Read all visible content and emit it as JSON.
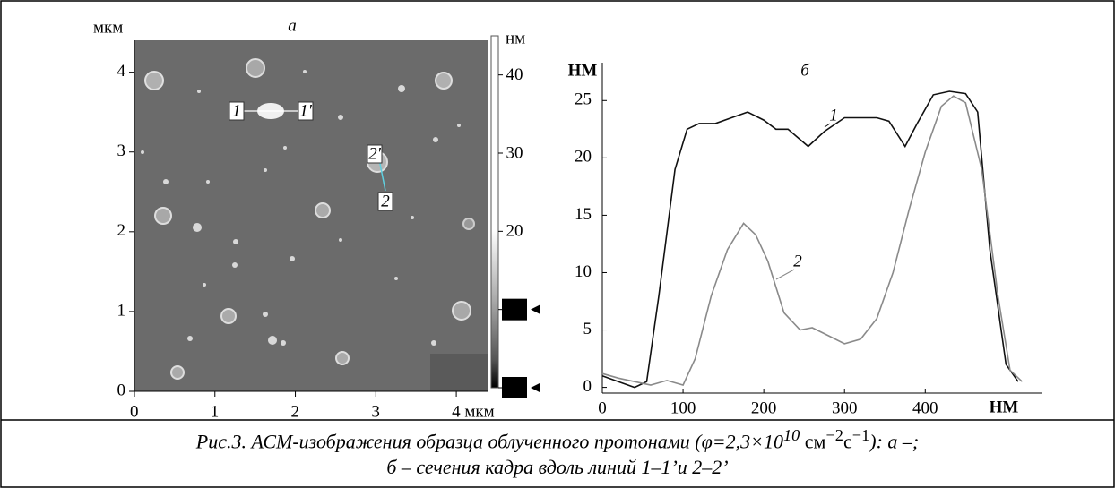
{
  "chart_data": [
    {
      "type": "image",
      "title": "а",
      "ylabel": "мкм",
      "xlim": [
        0,
        4.4
      ],
      "ylim": [
        0,
        4.4
      ],
      "xticks": [
        0,
        1,
        2,
        3,
        {
          "value": 4,
          "label": "4 мкм"
        }
      ],
      "yticks": [
        0,
        1,
        2,
        3,
        4
      ],
      "annotations": [
        "1",
        "1'",
        "2'",
        "2"
      ],
      "colorbar": {
        "label": "нм",
        "lim": [
          0,
          45
        ],
        "ticks": [
          0,
          10,
          20,
          30,
          40
        ],
        "markers": [
          10,
          0
        ]
      }
    },
    {
      "type": "line",
      "title": "б",
      "ylabel": "НМ",
      "xlabel": "НМ",
      "xlim": [
        0,
        544
      ],
      "ylim": [
        -0.5,
        28.3
      ],
      "xticks": [
        0,
        100,
        200,
        300,
        400
      ],
      "yticks": [
        0,
        5,
        10,
        15,
        20,
        25
      ],
      "series": [
        {
          "name": "1",
          "color": "#111111",
          "x": [
            0,
            20,
            40,
            55,
            70,
            90,
            105,
            120,
            140,
            160,
            180,
            200,
            215,
            230,
            255,
            275,
            300,
            320,
            340,
            355,
            375,
            390,
            410,
            430,
            450,
            465,
            480,
            500,
            515
          ],
          "values": [
            1,
            0.5,
            0,
            0.5,
            8,
            19,
            22.5,
            23,
            23,
            23.5,
            24,
            23.3,
            22.5,
            22.5,
            21,
            22.3,
            23.5,
            23.5,
            23.5,
            23.2,
            21,
            23,
            25.5,
            25.8,
            25.6,
            24,
            12,
            2,
            0.5
          ]
        },
        {
          "name": "2",
          "color": "#8a8a8a",
          "x": [
            0,
            20,
            40,
            60,
            80,
            100,
            115,
            135,
            155,
            175,
            190,
            205,
            225,
            245,
            260,
            280,
            300,
            320,
            340,
            360,
            380,
            400,
            420,
            435,
            450,
            470,
            490,
            505,
            520
          ],
          "values": [
            1.2,
            0.8,
            0.5,
            0.2,
            0.6,
            0.2,
            2.5,
            8,
            12,
            14.3,
            13.3,
            11,
            6.5,
            5,
            5.2,
            4.5,
            3.8,
            4.2,
            6,
            10,
            15.5,
            20.5,
            24.5,
            25.4,
            24.8,
            19,
            8,
            1.5,
            0.5
          ]
        }
      ]
    }
  ],
  "caption": {
    "line1": [
      "Рис.3. АСМ-изображения образца облученного протонами (φ=2,3×10",
      "10",
      " см",
      "−2",
      "с",
      "−1",
      "): а –;"
    ],
    "line2": "б – сечения кадра вдоль линий 1–1’и 2–2’"
  }
}
